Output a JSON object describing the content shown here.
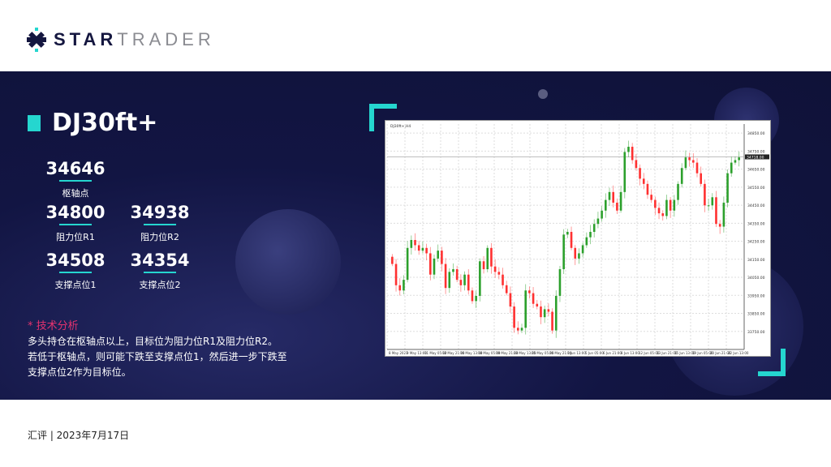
{
  "brand": {
    "star": "STAR",
    "trader": "TRADER"
  },
  "symbol": "DJ30ft+",
  "levels": {
    "pivot": {
      "value": "34646",
      "label": "枢轴点"
    },
    "r1": {
      "value": "34800",
      "label": "阻力位R1"
    },
    "r2": {
      "value": "34938",
      "label": "阻力位R2"
    },
    "s1": {
      "value": "34508",
      "label": "支撑点位1"
    },
    "s2": {
      "value": "34354",
      "label": "支撑点位2"
    }
  },
  "analysis": {
    "heading": "* 技术分析",
    "lines": [
      "多头持仓在枢轴点以上，目标位为阻力位R1及阻力位R2。",
      "若低于枢轴点，则可能下跌至支撑点位1，然后进一步下跌至",
      "支撑点位2作为目标位。"
    ]
  },
  "footer": "汇评 | 2023年7月17日",
  "colors": {
    "accent": "#25d6cf",
    "navy": "#121543",
    "up": "#2ca02c",
    "down": "#ff3030",
    "highlight": "#e4326f"
  },
  "chart_data": {
    "type": "candlestick",
    "header": "DJ30ft+,H4",
    "ylim": [
      33650,
      34900
    ],
    "grid": true,
    "current_price": 34718,
    "yticks": [
      34850,
      34750,
      34650,
      34550,
      34450,
      34350,
      34250,
      34150,
      34050,
      33950,
      33850,
      33750
    ],
    "xticks": [
      "8 May 2023",
      "9 May 13:00",
      "11 May 05:00",
      "12 May 21:00",
      "16 May 13:00",
      "18 May 05:00",
      "19 May 21:00",
      "23 May 13:00",
      "25 May 05:00",
      "26 May 21:00",
      "1 Jun 13:00",
      "5 Jun 05:00",
      "6 Jun 21:00",
      "8 Jun 13:00",
      "12 Jun 05:00",
      "13 Jun 21:00",
      "15 Jun 13:00",
      "19 Jun 05:00",
      "20 Jun 21:00",
      "22 Jun 13:00"
    ],
    "closes": [
      34124,
      34006,
      33977,
      34036,
      34213,
      34257,
      34228,
      34198,
      34213,
      34183,
      34065,
      34154,
      34198,
      34124,
      33991,
      34080,
      34095,
      34036,
      34006,
      34065,
      33977,
      33918,
      33947,
      34139,
      34095,
      34213,
      34110,
      34080,
      34065,
      34006,
      33962,
      33888,
      33770,
      33755,
      33770,
      33977,
      33962,
      33903,
      33888,
      33829,
      33873,
      33859,
      33755,
      33947,
      34095,
      34287,
      34302,
      34213,
      34154,
      34183,
      34228,
      34272,
      34302,
      34346,
      34376,
      34420,
      34479,
      34523,
      34464,
      34420,
      34523,
      34745,
      34774,
      34700,
      34656,
      34597,
      34568,
      34508,
      34479,
      34435,
      34405,
      34390,
      34479,
      34420,
      34479,
      34568,
      34656,
      34715,
      34700,
      34686,
      34627,
      34568,
      34449,
      34449,
      34494,
      34346,
      34331,
      34464,
      34627,
      34686,
      34700,
      34715
    ]
  }
}
